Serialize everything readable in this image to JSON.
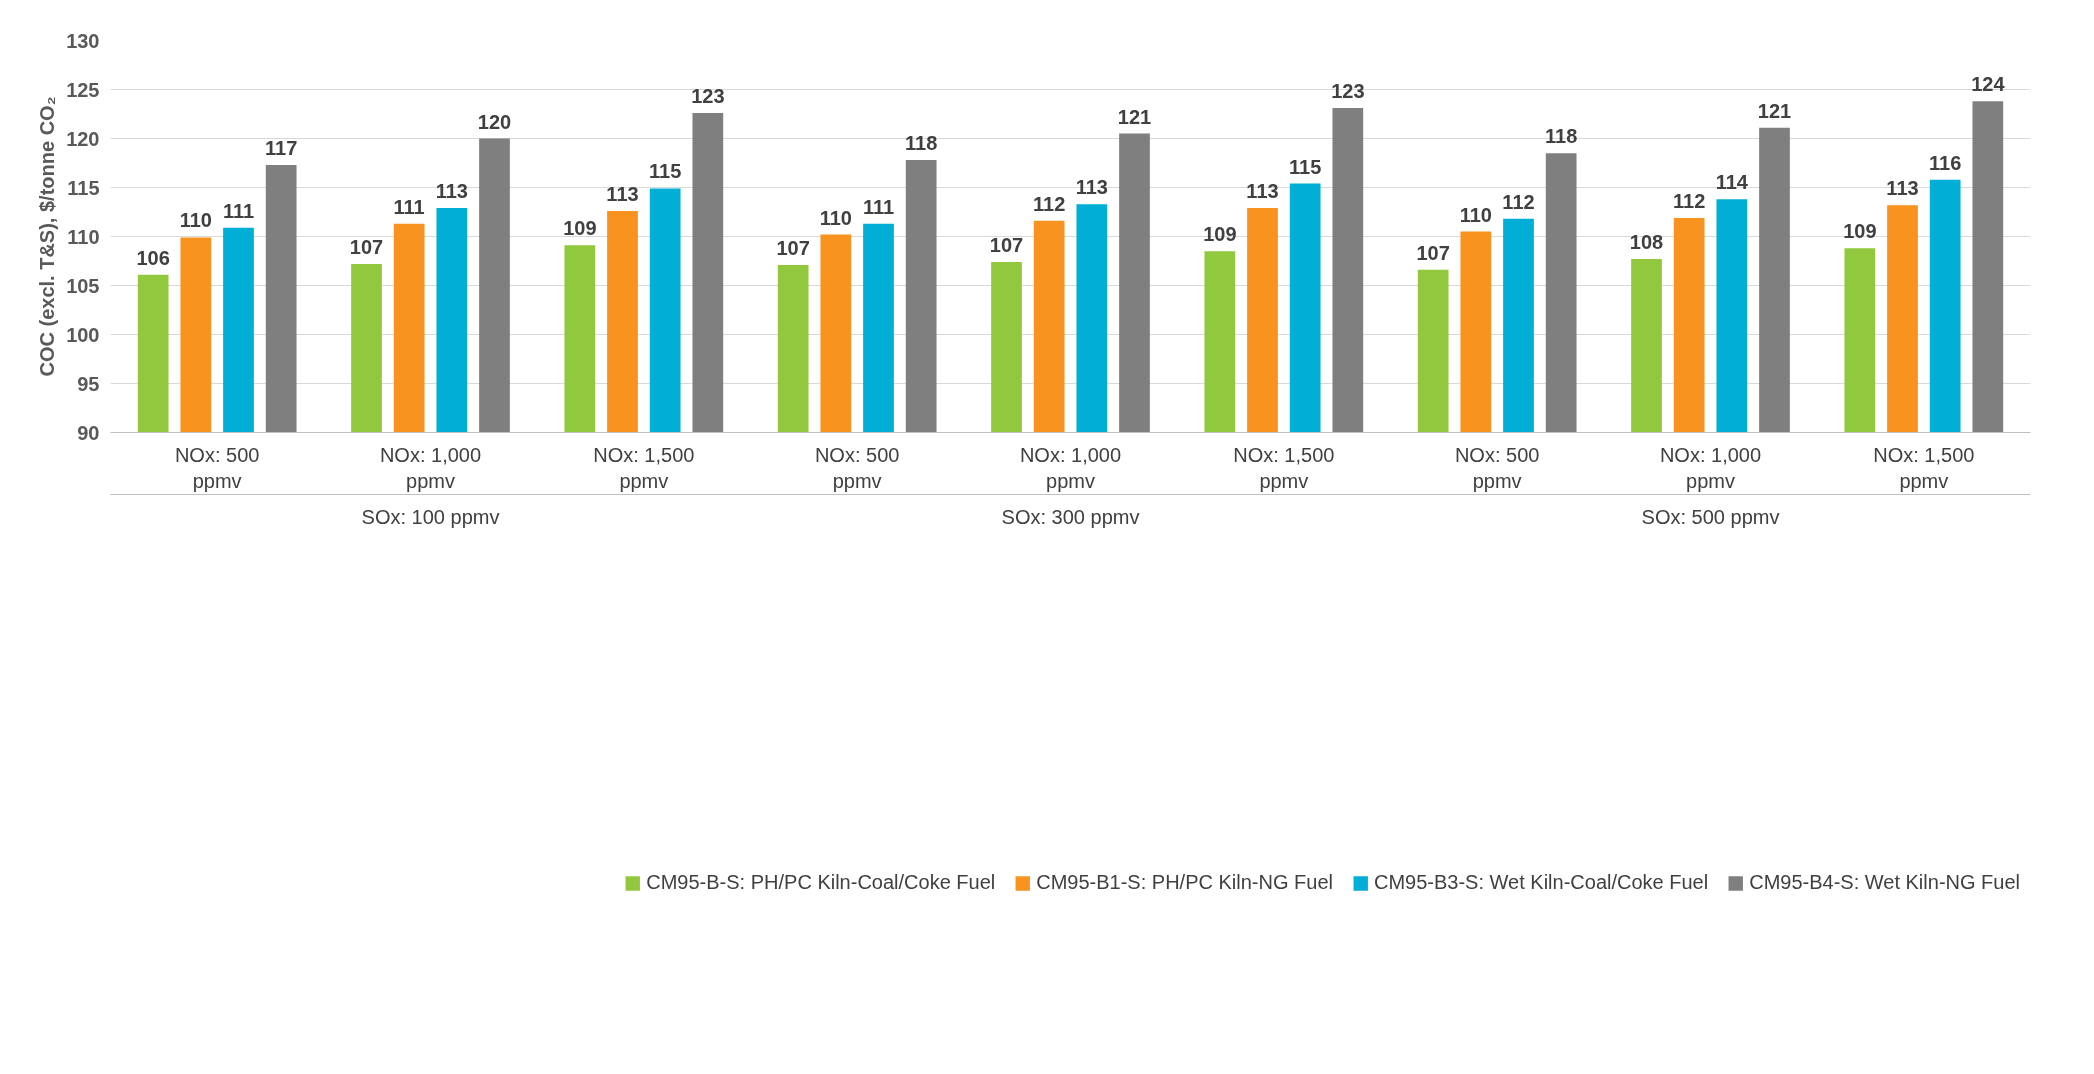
{
  "chart_data": {
    "type": "bar",
    "ylabel": "COC (excl. T&S), $/tonne CO₂",
    "categories": [
      "NOx: 500 ppmv",
      "NOx: 1,000 ppmv",
      "NOx: 1,500 ppmv",
      "NOx: 500 ppmv",
      "NOx: 1,000 ppmv",
      "NOx: 1,500 ppmv",
      "NOx: 500 ppmv",
      "NOx: 1,000 ppmv",
      "NOx: 1,500 ppmv"
    ],
    "annotations": [
      "SOx: 100 ppmv",
      "SOx: 300 ppmv",
      "SOx: 500 ppmv"
    ],
    "series": [
      {
        "name": "CM95-B-S: PH/PC Kiln-Coal/Coke Fuel",
        "color": "#92c83e",
        "values": [
          106.1,
          107.2,
          109.1,
          107.1,
          107.4,
          108.5,
          106.6,
          107.7,
          108.8
        ],
        "value_labels": [
          "106",
          "107",
          "109",
          "107",
          "107",
          "109",
          "107",
          "108",
          "109"
        ]
      },
      {
        "name": "CM95-B1-S: PH/PC Kiln-NG Fuel",
        "color": "#f7931e",
        "values": [
          109.9,
          111.3,
          112.6,
          110.2,
          111.6,
          112.9,
          110.5,
          111.9,
          113.2
        ],
        "value_labels": [
          "110",
          "111",
          "113",
          "110",
          "112",
          "113",
          "110",
          "112",
          "113"
        ]
      },
      {
        "name": "CM95-B3-S: Wet Kiln-Coal/Coke Fuel",
        "color": "#00aed6",
        "values": [
          110.9,
          112.9,
          114.9,
          111.3,
          113.3,
          115.4,
          111.8,
          113.8,
          115.8
        ],
        "value_labels": [
          "111",
          "113",
          "115",
          "111",
          "113",
          "115",
          "112",
          "114",
          "116"
        ]
      },
      {
        "name": "CM95-B4-S: Wet Kiln-NG Fuel",
        "color": "#7f7f7f",
        "values": [
          117.3,
          120.0,
          122.6,
          117.8,
          120.5,
          123.1,
          118.5,
          121.1,
          123.8
        ],
        "value_labels": [
          "117",
          "120",
          "123",
          "118",
          "121",
          "123",
          "118",
          "121",
          "124"
        ]
      }
    ],
    "ylim": [
      90,
      130
    ],
    "yticks": [
      90,
      95,
      100,
      105,
      110,
      115,
      120,
      125,
      130
    ],
    "grid": "y",
    "legend": "bottom"
  }
}
